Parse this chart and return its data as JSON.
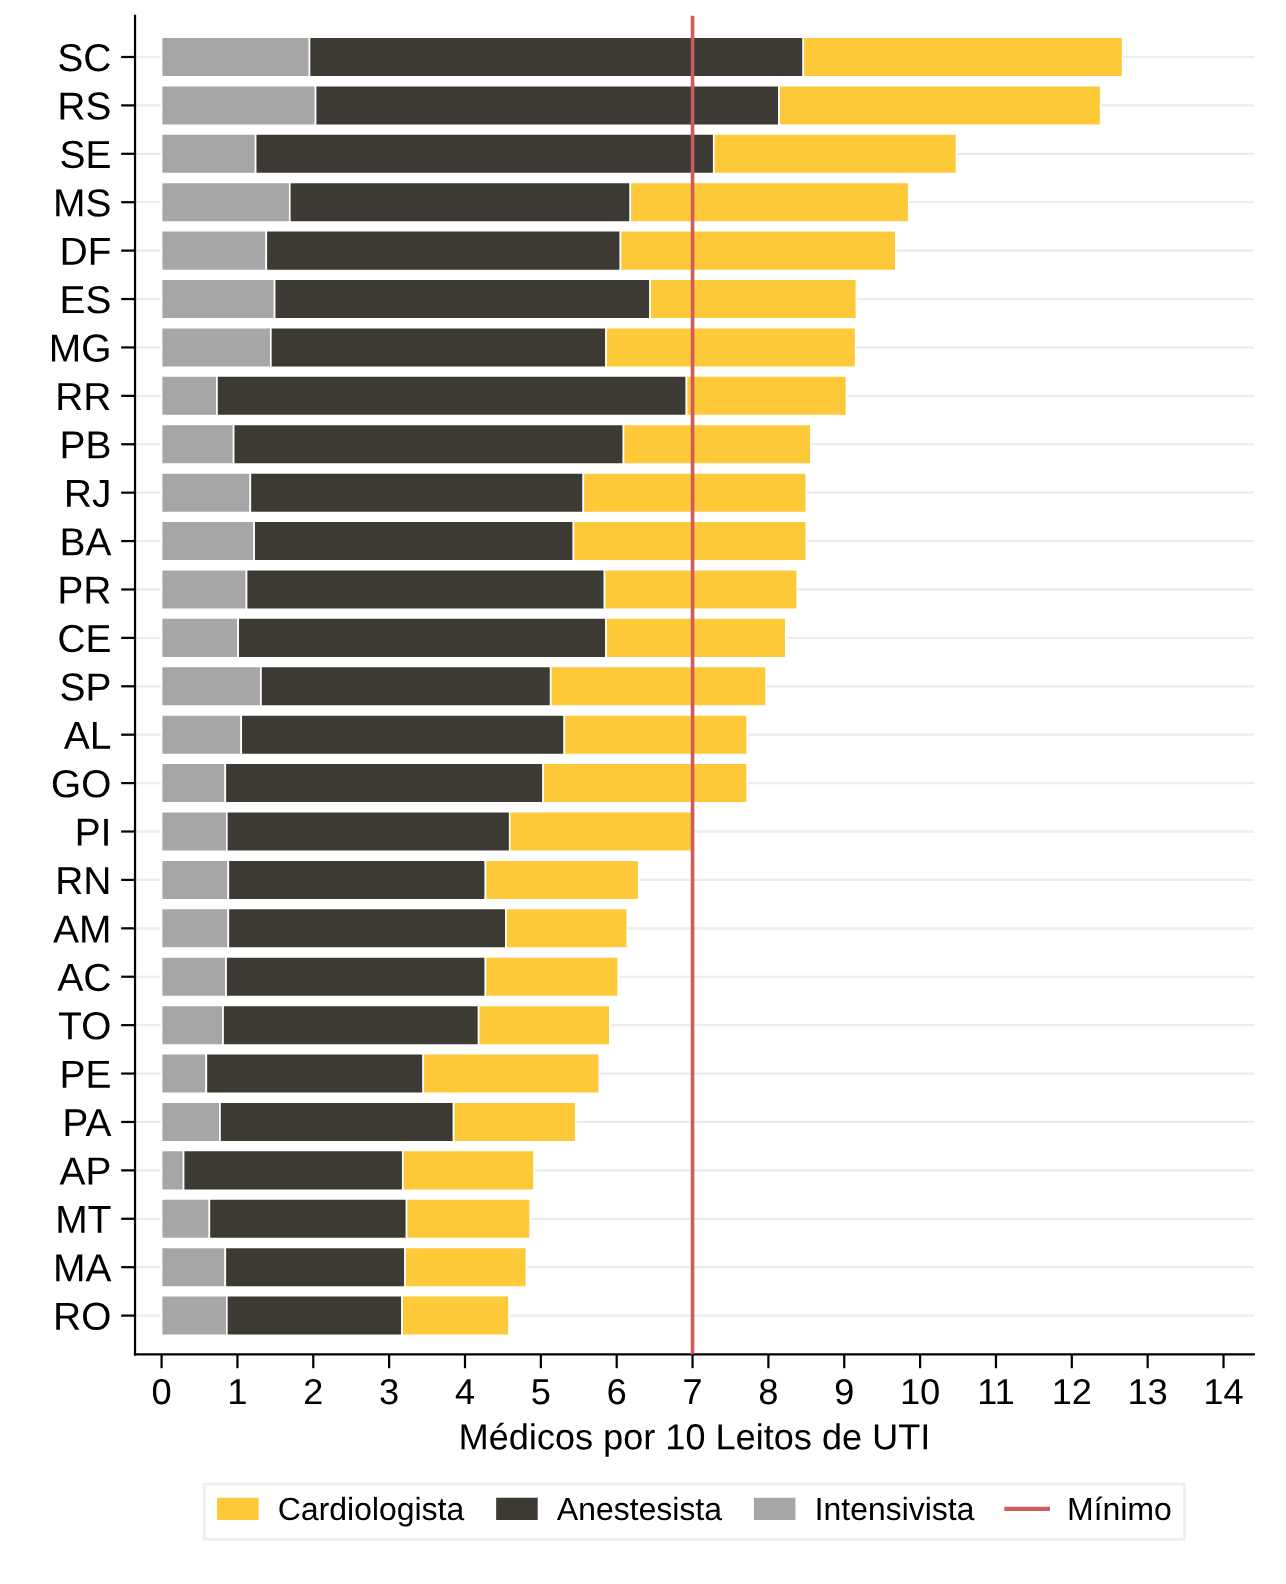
{
  "chart_data": {
    "type": "bar",
    "orientation": "horizontal",
    "stacked": true,
    "xlabel": "Médicos por 10 Leitos de UTI",
    "categories": [
      "SC",
      "RS",
      "SE",
      "MS",
      "DF",
      "ES",
      "MG",
      "RR",
      "PB",
      "RJ",
      "BA",
      "PR",
      "CE",
      "SP",
      "AL",
      "GO",
      "PI",
      "RN",
      "AM",
      "AC",
      "TO",
      "PE",
      "PA",
      "AP",
      "MT",
      "MA",
      "RO"
    ],
    "series": [
      {
        "name": "Intensivista",
        "color": "#a6a6a6",
        "values": [
          1.95,
          2.03,
          1.24,
          1.69,
          1.38,
          1.49,
          1.44,
          0.73,
          0.95,
          1.17,
          1.22,
          1.12,
          1.01,
          1.31,
          1.05,
          0.84,
          0.86,
          0.88,
          0.88,
          0.85,
          0.81,
          0.59,
          0.77,
          0.29,
          0.63,
          0.84,
          0.86
        ]
      },
      {
        "name": "Anestesista",
        "color": "#3d3a33",
        "values": [
          6.51,
          6.11,
          6.04,
          4.49,
          4.67,
          4.95,
          4.42,
          6.19,
          5.14,
          4.39,
          4.21,
          4.72,
          4.85,
          3.82,
          4.26,
          4.19,
          3.73,
          3.39,
          3.66,
          3.42,
          3.37,
          2.86,
          3.08,
          2.89,
          2.6,
          2.37,
          2.31
        ]
      },
      {
        "name": "Cardiologista",
        "color": "#fdc938",
        "values": [
          4.21,
          4.24,
          3.2,
          3.67,
          3.63,
          2.72,
          3.29,
          2.11,
          2.47,
          2.94,
          3.07,
          2.54,
          2.37,
          2.84,
          2.41,
          2.69,
          2.41,
          2.02,
          1.6,
          1.75,
          1.73,
          2.32,
          1.61,
          1.73,
          1.63,
          1.6,
          1.41
        ]
      }
    ],
    "xlim": [
      -0.35,
      14.4
    ],
    "xticks": [
      0,
      1,
      2,
      3,
      4,
      5,
      6,
      7,
      8,
      9,
      10,
      11,
      12,
      13,
      14
    ],
    "ref_lines": [
      {
        "axis": "x",
        "value": 7,
        "label": "Mínimo",
        "color": "#cd5c5c"
      }
    ],
    "grid": "y",
    "legend": "bottom"
  }
}
